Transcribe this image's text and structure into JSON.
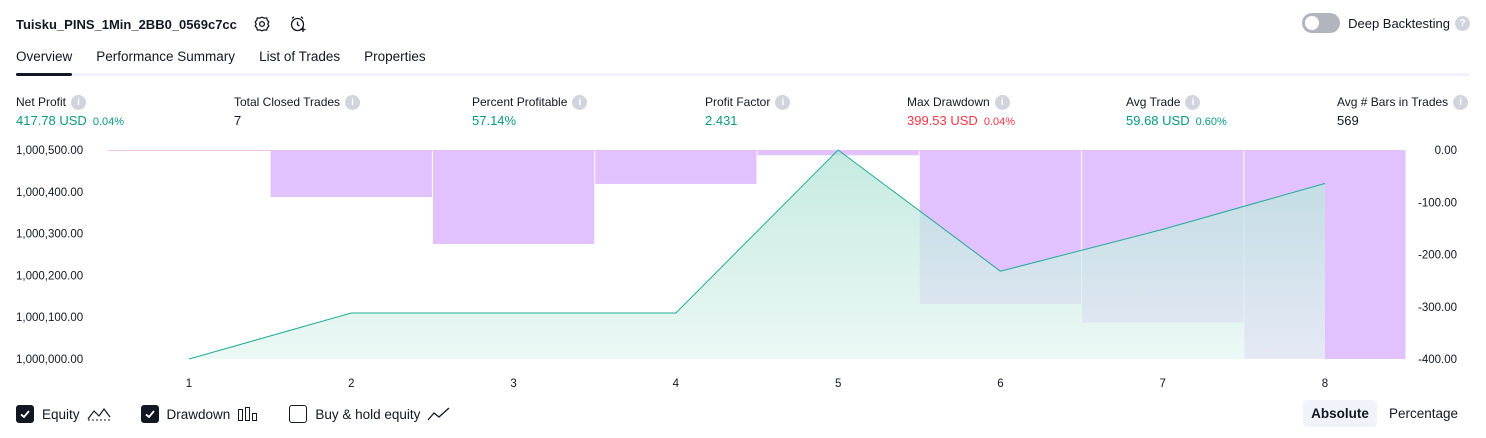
{
  "header": {
    "strategy_name": "Tuisku_PINS_1Min_2BB0_0569c7cc",
    "settings_icon": "settings-gear-icon",
    "alert_icon": "add-alert-clock-icon"
  },
  "deep_backtesting": {
    "label": "Deep Backtesting",
    "enabled": false,
    "help_glyph": "?"
  },
  "tabs": [
    {
      "label": "Overview",
      "active": true
    },
    {
      "label": "Performance Summary",
      "active": false
    },
    {
      "label": "List of Trades",
      "active": false
    },
    {
      "label": "Properties",
      "active": false
    }
  ],
  "metrics": {
    "net_profit": {
      "label": "Net Profit",
      "value": "417.78 USD",
      "pct": "0.04%"
    },
    "total_closed_trades": {
      "label": "Total Closed Trades",
      "value": "7"
    },
    "percent_profitable": {
      "label": "Percent Profitable",
      "value": "57.14%"
    },
    "profit_factor": {
      "label": "Profit Factor",
      "value": "2.431"
    },
    "max_drawdown": {
      "label": "Max Drawdown",
      "value": "399.53 USD",
      "pct": "0.04%"
    },
    "avg_trade": {
      "label": "Avg Trade",
      "value": "59.68 USD",
      "pct": "0.60%"
    },
    "avg_bars": {
      "label": "Avg # Bars in Trades",
      "value": "569"
    }
  },
  "colors": {
    "positive": "#089981",
    "negative": "#f23645",
    "equity_line": "#22ab94",
    "equity_fill": "#c6ece3",
    "drawdown_fill": "#e1c2ff"
  },
  "chart_data": {
    "type": "line",
    "x": [
      1,
      2,
      3,
      4,
      5,
      6,
      7,
      8
    ],
    "x_ticks": [
      "1",
      "2",
      "3",
      "4",
      "5",
      "6",
      "7",
      "8"
    ],
    "series": [
      {
        "name": "Equity",
        "type": "area",
        "axis": "left",
        "values": [
          1000000,
          1000110,
          1000110,
          1000110,
          1000500,
          1000210,
          1000310,
          1000420
        ]
      },
      {
        "name": "Drawdown",
        "type": "bar",
        "axis": "right",
        "values": [
          0,
          -90,
          -180,
          -65,
          -10,
          -295,
          -330,
          -400
        ]
      }
    ],
    "left_axis": {
      "ticks": [
        "1,000,500.00",
        "1,000,400.00",
        "1,000,300.00",
        "1,000,200.00",
        "1,000,100.00",
        "1,000,000.00"
      ],
      "ylim": [
        1000000,
        1000500
      ]
    },
    "right_axis": {
      "ticks": [
        "0.00",
        "-100.00",
        "-200.00",
        "-300.00",
        "-400.00"
      ],
      "ylim": [
        -400,
        0
      ]
    },
    "grid": false
  },
  "legend": [
    {
      "label": "Equity",
      "checked": true,
      "icon": "equity-line-icon"
    },
    {
      "label": "Drawdown",
      "checked": true,
      "icon": "drawdown-bars-icon"
    },
    {
      "label": "Buy & hold equity",
      "checked": false,
      "icon": "buy-hold-line-icon"
    }
  ],
  "mode": {
    "absolute": "Absolute",
    "percentage": "Percentage",
    "selected": "Absolute"
  }
}
